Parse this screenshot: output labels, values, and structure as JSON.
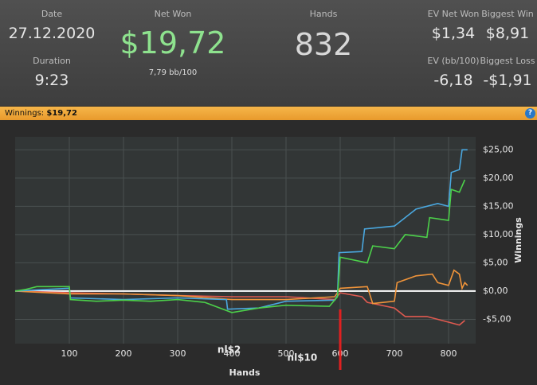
{
  "header": {
    "date": {
      "label": "Date",
      "value": "27.12.2020"
    },
    "duration": {
      "label": "Duration",
      "value": "9:23"
    },
    "net_won": {
      "label": "Net Won",
      "value": "$19,72",
      "sub": "7,79 bb/100"
    },
    "hands": {
      "label": "Hands",
      "value": "832"
    },
    "ev_net_won": {
      "label": "EV Net Won",
      "value": "$1,34"
    },
    "biggest_win": {
      "label": "Biggest Win",
      "value": "$8,91"
    },
    "ev_bb": {
      "label": "EV (bb/100)",
      "value": "-6,18"
    },
    "biggest_loss": {
      "label": "Biggest Loss",
      "value": "-$1,91"
    }
  },
  "bar": {
    "label": "Winnings:",
    "value": "$19,72"
  },
  "chart_data": {
    "type": "line",
    "x_label": "Hands",
    "y_label": "Winnings",
    "xlim": [
      0,
      850
    ],
    "ylim": [
      -9.3,
      27.3
    ],
    "xticks": [
      100,
      200,
      300,
      400,
      500,
      600,
      700,
      800
    ],
    "yticks": [
      {
        "value": 25,
        "label": "$25,00"
      },
      {
        "value": 20,
        "label": "$20,00"
      },
      {
        "value": 15,
        "label": "$15,00"
      },
      {
        "value": 10,
        "label": "$10,00"
      },
      {
        "value": 5,
        "label": "$5,00"
      },
      {
        "value": 0,
        "label": "$0,00"
      },
      {
        "value": -5,
        "label": "-$5,00"
      }
    ],
    "grid": true,
    "annotations": [
      {
        "text": "nl$2",
        "x": 395
      },
      {
        "text": "nl$10",
        "x": 530
      }
    ],
    "series": [
      {
        "color": "#e05a50",
        "x": [
          0,
          100,
          200,
          300,
          400,
          500,
          590,
          600,
          640,
          650,
          700,
          720,
          760,
          800,
          820,
          830
        ],
        "values": [
          0,
          -0.3,
          -0.5,
          -0.8,
          -1,
          -1,
          -1.5,
          -0.3,
          -1,
          -2,
          -3,
          -4.5,
          -4.5,
          -5.5,
          -6,
          -5.2
        ]
      },
      {
        "color": "#f0943a",
        "x": [
          0,
          100,
          200,
          300,
          400,
          500,
          590,
          600,
          650,
          660,
          700,
          705,
          740,
          770,
          780,
          800,
          810,
          820,
          825,
          830,
          835
        ],
        "values": [
          0,
          -0.5,
          -0.5,
          -0.8,
          -1.5,
          -1.5,
          -1,
          0.5,
          0.8,
          -2.2,
          -1.8,
          1.5,
          2.7,
          3,
          1.5,
          1,
          3.7,
          3,
          0.5,
          1.5,
          1
        ]
      },
      {
        "color": "#4aa8e0",
        "x": [
          0,
          100,
          102,
          200,
          300,
          390,
          392,
          450,
          500,
          590,
          595,
          598,
          640,
          645,
          700,
          740,
          780,
          800,
          805,
          820,
          825,
          835
        ],
        "values": [
          0,
          0.5,
          -1.2,
          -1.5,
          -1.2,
          -1.5,
          -3.2,
          -3,
          -1.8,
          -1.6,
          -0.8,
          6.8,
          7,
          11,
          11.5,
          14.5,
          15.5,
          15,
          21,
          21.5,
          25,
          25
        ]
      },
      {
        "color": "#4cd04a",
        "x": [
          0,
          20,
          40,
          100,
          102,
          150,
          200,
          250,
          300,
          350,
          400,
          450,
          500,
          580,
          595,
          600,
          650,
          660,
          700,
          720,
          760,
          765,
          800,
          805,
          820,
          830
        ],
        "values": [
          0,
          0.3,
          0.8,
          0.8,
          -1.5,
          -1.8,
          -1.6,
          -1.8,
          -1.5,
          -2,
          -3.8,
          -3,
          -2.5,
          -2.7,
          -1,
          6,
          5,
          8,
          7.5,
          10,
          9.5,
          13,
          12.5,
          18,
          17.5,
          19.7
        ]
      }
    ]
  }
}
